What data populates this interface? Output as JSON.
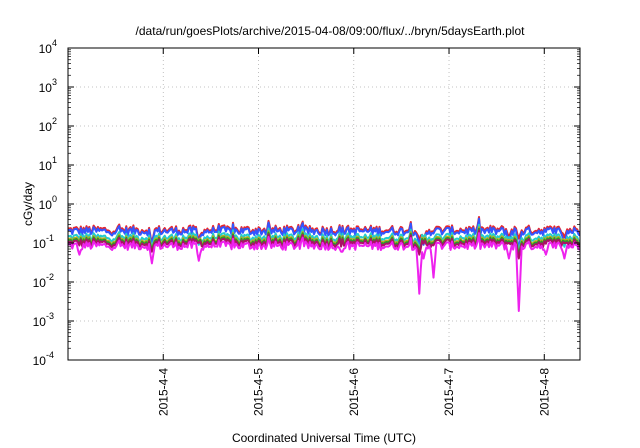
{
  "chart_data": {
    "type": "line",
    "title": "/data/run/goesPlots/archive/2015-04-08/09:00/flux/../bryn/5daysEarth.plot",
    "xlabel": "Coordinated Universal Time (UTC)",
    "ylabel": "cGy/day",
    "y_scale": "log",
    "ylim": [
      0.0001,
      10000
    ],
    "y_ticks": [
      {
        "base": "10",
        "exp": "-4"
      },
      {
        "base": "10",
        "exp": "-3"
      },
      {
        "base": "10",
        "exp": "-2"
      },
      {
        "base": "10",
        "exp": "-1"
      },
      {
        "base": "10",
        "exp": "0"
      },
      {
        "base": "10",
        "exp": "1"
      },
      {
        "base": "10",
        "exp": "2"
      },
      {
        "base": "10",
        "exp": "3"
      },
      {
        "base": "10",
        "exp": "4"
      }
    ],
    "x_unit": "day",
    "xlim": [
      "2015-04-03 00:00",
      "2015-04-08 09:00"
    ],
    "x_ticks": [
      {
        "label": "2015-4-4",
        "value": "2015-04-04 00:00"
      },
      {
        "label": "2015-4-5",
        "value": "2015-04-05 00:00"
      },
      {
        "label": "2015-4-6",
        "value": "2015-04-06 00:00"
      },
      {
        "label": "2015-4-7",
        "value": "2015-04-07 00:00"
      },
      {
        "label": "2015-4-8",
        "value": "2015-04-08 00:00"
      }
    ],
    "grid": true,
    "legend": "none",
    "series": [
      {
        "color": "#e8262b",
        "base": 0.22,
        "dips": [
          [
            "2015-04-03 21:00",
            0.1
          ],
          [
            "2015-04-04 09:00",
            0.12
          ],
          [
            "2015-04-06 16:30",
            0.11
          ],
          [
            "2015-04-06 17:30",
            0.12
          ],
          [
            "2015-04-07 15:00",
            0.14
          ],
          [
            "2015-04-07 17:40",
            0.13
          ],
          [
            "2015-04-08 05:00",
            0.14
          ]
        ]
      },
      {
        "color": "#3355ff",
        "base": 0.2,
        "dips": [
          [
            "2015-04-03 21:00",
            0.09
          ],
          [
            "2015-04-04 09:00",
            0.1
          ],
          [
            "2015-04-06 16:30",
            0.08
          ],
          [
            "2015-04-06 17:30",
            0.09
          ],
          [
            "2015-04-07 15:00",
            0.1
          ],
          [
            "2015-04-07 17:40",
            0.07
          ],
          [
            "2015-04-08 05:00",
            0.09
          ]
        ]
      },
      {
        "color": "#22cccc",
        "base": 0.14,
        "dips": [
          [
            "2015-04-03 21:00",
            0.08
          ],
          [
            "2015-04-04 09:00",
            0.09
          ],
          [
            "2015-04-06 16:30",
            0.07
          ],
          [
            "2015-04-07 17:40",
            0.06
          ],
          [
            "2015-04-08 05:00",
            0.08
          ]
        ]
      },
      {
        "color": "#b8b020",
        "base": 0.12,
        "dips": [
          [
            "2015-04-03 21:00",
            0.07
          ],
          [
            "2015-04-06 16:30",
            0.06
          ],
          [
            "2015-04-07 17:40",
            0.05
          ]
        ]
      },
      {
        "color": "#2a9a2a",
        "base": 0.11,
        "dips": [
          [
            "2015-04-03 21:00",
            0.07
          ],
          [
            "2015-04-06 16:30",
            0.06
          ],
          [
            "2015-04-07 17:40",
            0.05
          ]
        ]
      },
      {
        "color": "#aa1166",
        "base": 0.1,
        "dips": [
          [
            "2015-04-03 21:00",
            0.06
          ],
          [
            "2015-04-06 16:30",
            0.05
          ],
          [
            "2015-04-07 17:40",
            0.04
          ]
        ]
      },
      {
        "color": "#ee22ee",
        "base": 0.085,
        "dips": [
          [
            "2015-04-03 03:00",
            0.05
          ],
          [
            "2015-04-03 21:00",
            0.03
          ],
          [
            "2015-04-04 09:00",
            0.035
          ],
          [
            "2015-04-05 21:00",
            0.06
          ],
          [
            "2015-04-06 16:30",
            0.005
          ],
          [
            "2015-04-06 17:30",
            0.04
          ],
          [
            "2015-04-06 20:00",
            0.013
          ],
          [
            "2015-04-07 15:00",
            0.04
          ],
          [
            "2015-04-07 17:40",
            0.0018
          ],
          [
            "2015-04-08 00:30",
            0.05
          ],
          [
            "2015-04-08 05:00",
            0.04
          ]
        ]
      }
    ]
  }
}
